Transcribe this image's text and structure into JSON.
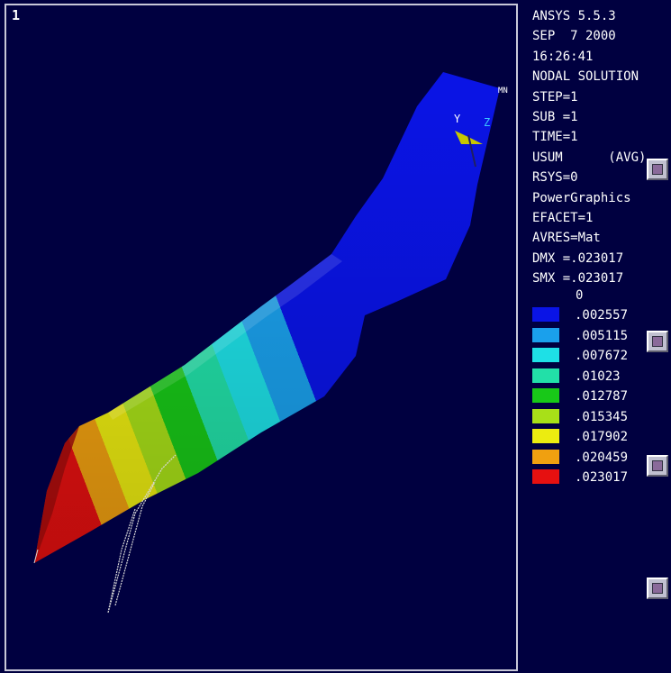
{
  "viewport": {
    "number": "1"
  },
  "triad": {
    "y_label": "Y",
    "z_label": "Z",
    "mn_label": "MN"
  },
  "info": {
    "lines": [
      "ANSYS 5.5.3",
      "SEP  7 2000",
      "16:26:41",
      "NODAL SOLUTION",
      "STEP=1",
      "SUB =1",
      "TIME=1",
      "USUM      (AVG)",
      "RSYS=0",
      "PowerGraphics",
      "EFACET=1",
      "AVRES=Mat",
      "DMX =.023017",
      "SMX =.023017"
    ]
  },
  "legend": {
    "min_label": "0",
    "entries": [
      {
        "value": ".002557",
        "color": "#0a14e6"
      },
      {
        "value": ".005115",
        "color": "#1aa0ec"
      },
      {
        "value": ".007672",
        "color": "#1ee0e6"
      },
      {
        "value": ".01023",
        "color": "#22e0a8"
      },
      {
        "value": ".012787",
        "color": "#18c818"
      },
      {
        "value": ".015345",
        "color": "#a8e018"
      },
      {
        "value": ".017902",
        "color": "#ecec10"
      },
      {
        "value": ".020459",
        "color": "#f0a010"
      },
      {
        "value": ".023017",
        "color": "#e61010"
      }
    ]
  },
  "side_buttons": [
    {
      "icon": "window-icon"
    },
    {
      "icon": "window-icon"
    },
    {
      "icon": "window-icon"
    },
    {
      "icon": "window-icon"
    }
  ]
}
